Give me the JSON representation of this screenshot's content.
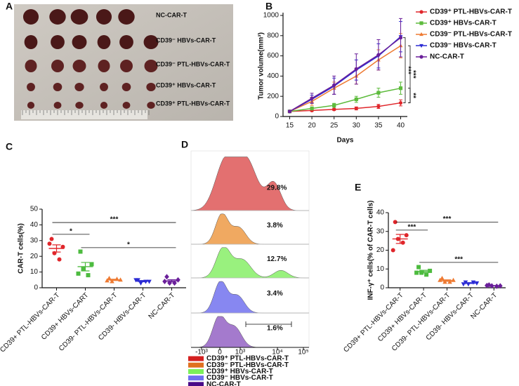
{
  "panel_a": {
    "letter": "A",
    "labels": [
      "NC-CAR-T",
      "CD39⁻ HBVs-CAR-T",
      "CD39⁻ PTL-HBVs-CAR-T",
      "CD39⁺ HBVs-CAR-T",
      "CD39⁺ PTL-HBVs-CAR-T"
    ]
  },
  "chart_data": [
    {
      "type": "line",
      "panel": "B",
      "xlabel": "Days",
      "ylabel": "Tumor volume(mm³)",
      "x": [
        15,
        20,
        25,
        30,
        35,
        40
      ],
      "xlim": [
        13.5,
        41.5
      ],
      "xticks": [
        15,
        20,
        25,
        30,
        35,
        40
      ],
      "ylim": [
        0,
        1000
      ],
      "yticks": [
        0,
        200,
        400,
        600,
        800,
        1000
      ],
      "series": [
        {
          "name": "CD39⁺ PTL-HBVs-CAR-T",
          "color": "#e0262b",
          "marker": "circle",
          "values": [
            50,
            60,
            70,
            80,
            100,
            135
          ],
          "errors": [
            5,
            10,
            10,
            15,
            20,
            30
          ]
        },
        {
          "name": "CD39⁺ HBVs-CAR-T",
          "color": "#5dbb3c",
          "marker": "square",
          "values": [
            50,
            80,
            110,
            170,
            235,
            280
          ],
          "errors": [
            5,
            15,
            20,
            30,
            45,
            60
          ]
        },
        {
          "name": "CD39⁻ PTL-HBVs-CAR-T",
          "color": "#ee7a32",
          "marker": "triangle",
          "values": [
            50,
            150,
            280,
            400,
            560,
            700
          ],
          "errors": [
            5,
            40,
            60,
            80,
            100,
            120
          ]
        },
        {
          "name": "CD39⁻ HBVs-CAR-T",
          "color": "#2b2bd4",
          "marker": "triangle-down",
          "values": [
            50,
            170,
            300,
            460,
            600,
            790
          ],
          "errors": [
            5,
            40,
            80,
            100,
            120,
            150
          ]
        },
        {
          "name": "NC-CAR-T",
          "color": "#6a1f9a",
          "marker": "circle",
          "values": [
            50,
            180,
            310,
            470,
            610,
            780
          ],
          "errors": [
            10,
            50,
            90,
            150,
            150,
            190
          ]
        }
      ],
      "annotations": [
        "***",
        "***",
        "**"
      ]
    },
    {
      "type": "dot",
      "panel": "C",
      "ylabel": "CAR-T cells(%)",
      "categories": [
        "CD39+ PTL-HBVs-CAR-T",
        "CD39+ HBVs-CART",
        "CD39- PTL-HBVs-CAR-T",
        "CD39- HBVs-CAR-T",
        "NC-CAR-T"
      ],
      "ylim": [
        0,
        50
      ],
      "yticks": [
        0,
        10,
        20,
        30,
        40,
        50
      ],
      "groups": [
        {
          "color": "#e0262b",
          "marker": "circle",
          "points": [
            31,
            26,
            22,
            18,
            28
          ],
          "mean": 25,
          "sem": 2.3
        },
        {
          "color": "#4dbb3f",
          "marker": "square",
          "points": [
            23,
            15,
            12,
            8,
            9
          ],
          "mean": 13.4,
          "sem": 2.7
        },
        {
          "color": "#ee7a32",
          "marker": "triangle",
          "points": [
            6,
            5,
            4,
            5.5,
            4.5
          ],
          "mean": 5,
          "sem": 0.4
        },
        {
          "color": "#2b2bd4",
          "marker": "triangle-down",
          "points": [
            5,
            4,
            3,
            4,
            5
          ],
          "mean": 4.2,
          "sem": 0.4
        },
        {
          "color": "#6a1f9a",
          "marker": "diamond",
          "points": [
            7,
            5,
            3,
            3,
            4
          ],
          "mean": 4.4,
          "sem": 0.7
        }
      ],
      "significance": [
        {
          "label": "*",
          "y": 34
        },
        {
          "label": "***",
          "y": 41.5
        },
        {
          "label": "*",
          "y": 25.5
        }
      ]
    },
    {
      "type": "dot",
      "panel": "E",
      "ylabel": "INF-γ⁺ cells(% of CAR-T cells)",
      "categories": [
        "CD39+ PTL-HBVs-CAR-T",
        "CD39+ HBVs-CAR-T",
        "CD39- PTL-HBVs-CAR-T",
        "CD39- HBVs-CAR-T",
        "NC-CAR-T"
      ],
      "ylim": [
        0,
        40
      ],
      "yticks": [
        0,
        10,
        20,
        30,
        40
      ],
      "groups": [
        {
          "color": "#e0262b",
          "marker": "circle",
          "points": [
            35,
            28,
            26,
            24,
            20
          ],
          "mean": 26,
          "sem": 2.4
        },
        {
          "color": "#4dbb3f",
          "marker": "square",
          "points": [
            11,
            9,
            8,
            7,
            8
          ],
          "mean": 8.6,
          "sem": 0.7
        },
        {
          "color": "#ee7a32",
          "marker": "triangle",
          "points": [
            5,
            4,
            3,
            3,
            4
          ],
          "mean": 3.8,
          "sem": 0.4
        },
        {
          "color": "#2b2bd4",
          "marker": "triangle-down",
          "points": [
            3,
            2.5,
            2,
            3,
            2
          ],
          "mean": 2.5,
          "sem": 0.2
        },
        {
          "color": "#6a1f9a",
          "marker": "diamond",
          "points": [
            1.5,
            1,
            1,
            0.8,
            1.2
          ],
          "mean": 1.1,
          "sem": 0.1
        }
      ],
      "significance": [
        {
          "label": "***",
          "y": 30.7
        },
        {
          "label": "***",
          "y": 35
        },
        {
          "label": "***",
          "y": 13.5
        }
      ]
    }
  ],
  "panel_d": {
    "letter": "D",
    "percentages": [
      "29.8%",
      "3.8%",
      "12.7%",
      "3.4%",
      "1.6%"
    ],
    "xticks": [
      "-10³",
      "0",
      "10³",
      "10⁴",
      "10⁵"
    ],
    "legend": [
      {
        "name": "CD39⁺ PTL-HBVs-CAR-T",
        "color": "#d42020"
      },
      {
        "name": "CD39⁻ PTL-HBVs-CAR-T",
        "color": "#e07020"
      },
      {
        "name": "CD39⁺ HBVs-CAR-T",
        "color": "#7cf05a"
      },
      {
        "name": "CD39⁻ HBVs-CAR-T",
        "color": "#7070f0"
      },
      {
        "name": "NC-CAR-T",
        "color": "#4a0a88"
      }
    ]
  }
}
